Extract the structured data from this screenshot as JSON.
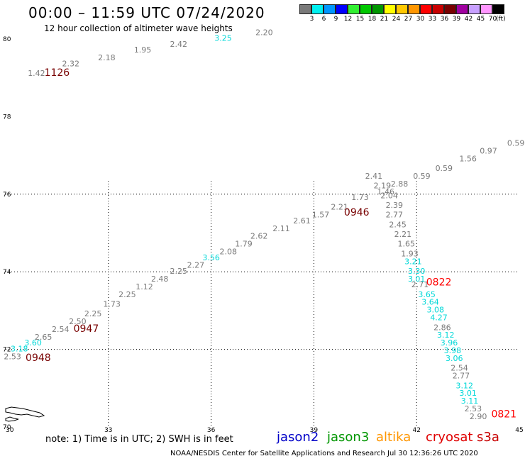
{
  "header": {
    "title": "00:00 – 11:59 UTC 07/24/2020",
    "subtitle": "12 hour collection of altimeter wave heights"
  },
  "legend": {
    "unit": "(ft)",
    "bins": [
      {
        "label": "3",
        "color": "#7a7a7a"
      },
      {
        "label": "6",
        "color": "#00f0f0"
      },
      {
        "label": "9",
        "color": "#0096ff"
      },
      {
        "label": "12",
        "color": "#0000ff"
      },
      {
        "label": "15",
        "color": "#32f032"
      },
      {
        "label": "18",
        "color": "#00c800"
      },
      {
        "label": "21",
        "color": "#009600"
      },
      {
        "label": "24",
        "color": "#ffff00"
      },
      {
        "label": "27",
        "color": "#ffc800"
      },
      {
        "label": "30",
        "color": "#ff9600"
      },
      {
        "label": "33",
        "color": "#ff0000"
      },
      {
        "label": "36",
        "color": "#c80000"
      },
      {
        "label": "39",
        "color": "#780000"
      },
      {
        "label": "42",
        "color": "#a000a0"
      },
      {
        "label": "45",
        "color": "#c8a0ff"
      },
      {
        "label": "70",
        "color": "#ff96ff"
      },
      {
        "label": "",
        "color": "#000000"
      }
    ]
  },
  "map": {
    "lon_ticks": [
      "30",
      "33",
      "36",
      "39",
      "42",
      "45"
    ],
    "lat_ticks": [
      "70",
      "72",
      "74",
      "76",
      "78",
      "80"
    ],
    "lon_range": [
      30,
      45
    ],
    "lat_range": [
      70,
      80
    ],
    "time_labels": [
      {
        "text": "1126",
        "lon": 31.5,
        "lat": 79.05,
        "color": "#780000"
      },
      {
        "text": "0946",
        "lon": 40.25,
        "lat": 75.45,
        "color": "#780000"
      },
      {
        "text": "0822",
        "lon": 42.65,
        "lat": 73.65,
        "color": "#ff0000"
      },
      {
        "text": "0947",
        "lon": 32.35,
        "lat": 72.45,
        "color": "#780000"
      },
      {
        "text": "0948",
        "lon": 30.95,
        "lat": 71.7,
        "color": "#780000"
      },
      {
        "text": "0821",
        "lon": 44.55,
        "lat": 70.25,
        "color": "#ff0000"
      }
    ],
    "track_labels": [
      {
        "v": "1.42",
        "lon": 30.9,
        "lat": 79.05,
        "c": "#7a7a7a"
      },
      {
        "v": "2.32",
        "lon": 31.9,
        "lat": 79.3,
        "c": "#7a7a7a"
      },
      {
        "v": "2.18",
        "lon": 32.95,
        "lat": 79.45,
        "c": "#7a7a7a"
      },
      {
        "v": "1.95",
        "lon": 34.0,
        "lat": 79.65,
        "c": "#7a7a7a"
      },
      {
        "v": "2.42",
        "lon": 35.05,
        "lat": 79.8,
        "c": "#7a7a7a"
      },
      {
        "v": "3.25",
        "lon": 36.35,
        "lat": 79.95,
        "c": "#00d8d8"
      },
      {
        "v": "2.20",
        "lon": 37.55,
        "lat": 80.1,
        "c": "#7a7a7a"
      },
      {
        "v": "0.59",
        "lon": 44.9,
        "lat": 77.25,
        "c": "#7a7a7a"
      },
      {
        "v": "0.97",
        "lon": 44.1,
        "lat": 77.05,
        "c": "#7a7a7a"
      },
      {
        "v": "1.56",
        "lon": 43.5,
        "lat": 76.85,
        "c": "#7a7a7a"
      },
      {
        "v": "0.59",
        "lon": 42.8,
        "lat": 76.6,
        "c": "#7a7a7a"
      },
      {
        "v": "0.59",
        "lon": 42.15,
        "lat": 76.4,
        "c": "#7a7a7a"
      },
      {
        "v": "2.88",
        "lon": 41.5,
        "lat": 76.2,
        "c": "#7a7a7a"
      },
      {
        "v": "2.41",
        "lon": 40.75,
        "lat": 76.4,
        "c": "#7a7a7a"
      },
      {
        "v": "2.19",
        "lon": 41.0,
        "lat": 76.15,
        "c": "#7a7a7a"
      },
      {
        "v": "1.46",
        "lon": 41.1,
        "lat": 76.0,
        "c": "#7a7a7a"
      },
      {
        "v": "2.04",
        "lon": 41.2,
        "lat": 75.9,
        "c": "#7a7a7a"
      },
      {
        "v": "2.39",
        "lon": 41.35,
        "lat": 75.65,
        "c": "#7a7a7a"
      },
      {
        "v": "2.77",
        "lon": 41.35,
        "lat": 75.4,
        "c": "#7a7a7a"
      },
      {
        "v": "2.45",
        "lon": 41.45,
        "lat": 75.15,
        "c": "#7a7a7a"
      },
      {
        "v": "2.21",
        "lon": 41.6,
        "lat": 74.9,
        "c": "#7a7a7a"
      },
      {
        "v": "1.65",
        "lon": 41.7,
        "lat": 74.65,
        "c": "#7a7a7a"
      },
      {
        "v": "1.93",
        "lon": 41.8,
        "lat": 74.4,
        "c": "#7a7a7a"
      },
      {
        "v": "3.21",
        "lon": 41.9,
        "lat": 74.2,
        "c": "#00d8d8"
      },
      {
        "v": "3.30",
        "lon": 42.0,
        "lat": 73.95,
        "c": "#00d8d8"
      },
      {
        "v": "3.01",
        "lon": 42.0,
        "lat": 73.75,
        "c": "#00d8d8"
      },
      {
        "v": "2.71",
        "lon": 42.1,
        "lat": 73.6,
        "c": "#7a7a7a"
      },
      {
        "v": "3.65",
        "lon": 42.3,
        "lat": 73.35,
        "c": "#00d8d8"
      },
      {
        "v": "3.64",
        "lon": 42.4,
        "lat": 73.15,
        "c": "#00d8d8"
      },
      {
        "v": "3.08",
        "lon": 42.55,
        "lat": 72.95,
        "c": "#00d8d8"
      },
      {
        "v": "4.27",
        "lon": 42.65,
        "lat": 72.75,
        "c": "#00d8d8"
      },
      {
        "v": "2.86",
        "lon": 42.75,
        "lat": 72.5,
        "c": "#7a7a7a"
      },
      {
        "v": "3.12",
        "lon": 42.85,
        "lat": 72.3,
        "c": "#00d8d8"
      },
      {
        "v": "3.96",
        "lon": 42.95,
        "lat": 72.1,
        "c": "#00d8d8"
      },
      {
        "v": "3.98",
        "lon": 43.05,
        "lat": 71.9,
        "c": "#00d8d8"
      },
      {
        "v": "3.06",
        "lon": 43.1,
        "lat": 71.7,
        "c": "#00d8d8"
      },
      {
        "v": "2.54",
        "lon": 43.25,
        "lat": 71.45,
        "c": "#7a7a7a"
      },
      {
        "v": "2.77",
        "lon": 43.3,
        "lat": 71.25,
        "c": "#7a7a7a"
      },
      {
        "v": "3.12",
        "lon": 43.4,
        "lat": 71.0,
        "c": "#00d8d8"
      },
      {
        "v": "3.01",
        "lon": 43.5,
        "lat": 70.8,
        "c": "#00d8d8"
      },
      {
        "v": "3.11",
        "lon": 43.55,
        "lat": 70.6,
        "c": "#00d8d8"
      },
      {
        "v": "2.53",
        "lon": 43.65,
        "lat": 70.4,
        "c": "#7a7a7a"
      },
      {
        "v": "2.90",
        "lon": 43.8,
        "lat": 70.2,
        "c": "#7a7a7a"
      },
      {
        "v": "2.21",
        "lon": 39.75,
        "lat": 75.6,
        "c": "#7a7a7a"
      },
      {
        "v": "1.73",
        "lon": 40.35,
        "lat": 75.85,
        "c": "#7a7a7a"
      },
      {
        "v": "1.57",
        "lon": 39.2,
        "lat": 75.4,
        "c": "#7a7a7a"
      },
      {
        "v": "2.61",
        "lon": 38.65,
        "lat": 75.25,
        "c": "#7a7a7a"
      },
      {
        "v": "2.11",
        "lon": 38.05,
        "lat": 75.05,
        "c": "#7a7a7a"
      },
      {
        "v": "2.62",
        "lon": 37.4,
        "lat": 74.85,
        "c": "#7a7a7a"
      },
      {
        "v": "1.79",
        "lon": 36.95,
        "lat": 74.65,
        "c": "#7a7a7a"
      },
      {
        "v": "2.08",
        "lon": 36.5,
        "lat": 74.45,
        "c": "#7a7a7a"
      },
      {
        "v": "3.56",
        "lon": 36.0,
        "lat": 74.3,
        "c": "#00d8d8"
      },
      {
        "v": "2.27",
        "lon": 35.55,
        "lat": 74.1,
        "c": "#7a7a7a"
      },
      {
        "v": "2.25",
        "lon": 35.05,
        "lat": 73.95,
        "c": "#7a7a7a"
      },
      {
        "v": "2.48",
        "lon": 34.5,
        "lat": 73.75,
        "c": "#7a7a7a"
      },
      {
        "v": "1.12",
        "lon": 34.05,
        "lat": 73.55,
        "c": "#7a7a7a"
      },
      {
        "v": "2.25",
        "lon": 33.55,
        "lat": 73.35,
        "c": "#7a7a7a"
      },
      {
        "v": "1.73",
        "lon": 33.1,
        "lat": 73.1,
        "c": "#7a7a7a"
      },
      {
        "v": "2.25",
        "lon": 32.55,
        "lat": 72.85,
        "c": "#7a7a7a"
      },
      {
        "v": "2.50",
        "lon": 32.1,
        "lat": 72.65,
        "c": "#7a7a7a"
      },
      {
        "v": "2.54",
        "lon": 31.6,
        "lat": 72.45,
        "c": "#7a7a7a"
      },
      {
        "v": "2.65",
        "lon": 31.1,
        "lat": 72.25,
        "c": "#7a7a7a"
      },
      {
        "v": "3.60",
        "lon": 30.8,
        "lat": 72.1,
        "c": "#00d8d8"
      },
      {
        "v": "3.18",
        "lon": 30.4,
        "lat": 71.95,
        "c": "#00d8d8"
      },
      {
        "v": "2.53",
        "lon": 30.2,
        "lat": 71.75,
        "c": "#7a7a7a"
      }
    ]
  },
  "footer": {
    "note": "note:  1) Time is in UTC;  2) SWH is in feet",
    "satellites": [
      {
        "name": "jason2",
        "color": "#0000c8"
      },
      {
        "name": "jason3",
        "color": "#009600"
      },
      {
        "name": "altika",
        "color": "#ff9600"
      },
      {
        "name": "cryosat",
        "color": "#e00000"
      },
      {
        "name": "s3a",
        "color": "#c80000"
      }
    ],
    "credit": "NOAA/NESDIS Center for Satellite Applications and Research   Jul 30 12:36:26 UTC 2020"
  }
}
